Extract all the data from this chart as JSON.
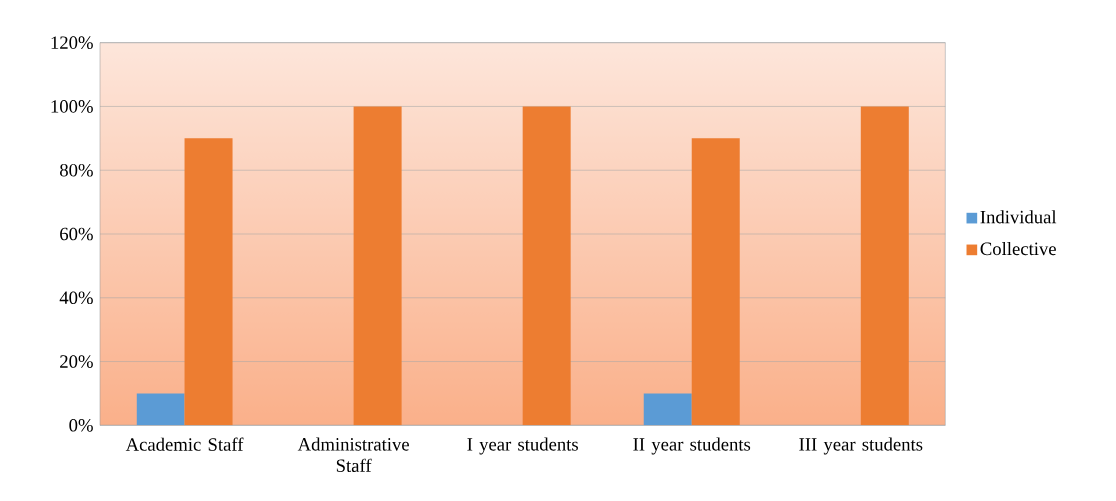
{
  "chart_data": {
    "type": "bar",
    "categories": [
      "Academic Staff",
      "Administrative Staff",
      "I year students",
      "II year students",
      "III year students"
    ],
    "series": [
      {
        "name": "Individual",
        "color": "#5b9bd5",
        "values": [
          10,
          0,
          0,
          10,
          0
        ]
      },
      {
        "name": "Collective",
        "color": "#ed7d31",
        "values": [
          90,
          100,
          100,
          90,
          100
        ]
      }
    ],
    "ylim": [
      0,
      120
    ],
    "yticks": [
      {
        "value": 0,
        "label": "0%"
      },
      {
        "value": 20,
        "label": "20%"
      },
      {
        "value": 40,
        "label": "40%"
      },
      {
        "value": 60,
        "label": "60%"
      },
      {
        "value": 80,
        "label": "80%"
      },
      {
        "value": 100,
        "label": "100%"
      },
      {
        "value": 120,
        "label": "120%"
      }
    ],
    "grid": "y",
    "legend": "right"
  }
}
